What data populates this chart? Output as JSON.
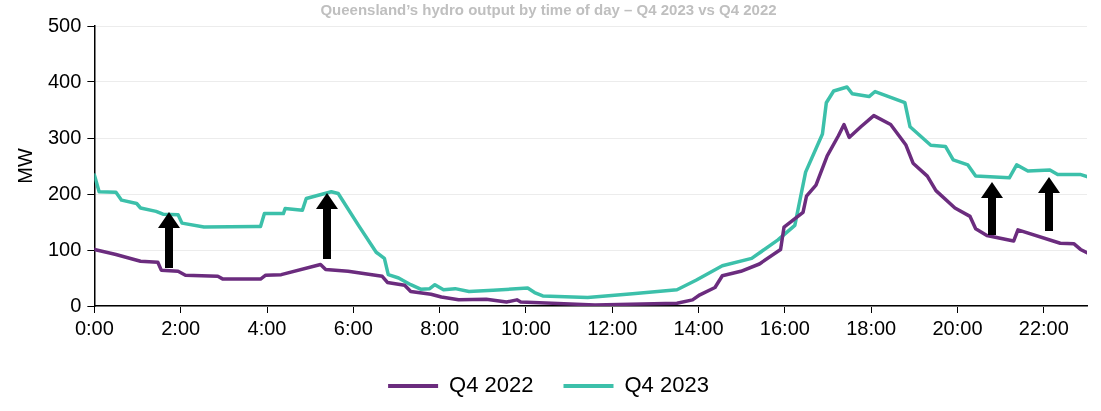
{
  "chart_data": {
    "type": "line",
    "title": "Queensland’s hydro output by time of day – Q4 2023 vs Q4 2022",
    "ylabel": "MW",
    "xlim": [
      0,
      23
    ],
    "ylim": [
      0,
      500
    ],
    "yticks": [
      0,
      100,
      200,
      300,
      400,
      500
    ],
    "xticks": [
      {
        "value": 0,
        "label": "0:00"
      },
      {
        "value": 2,
        "label": "2:00"
      },
      {
        "value": 4,
        "label": "4:00"
      },
      {
        "value": 6,
        "label": "6:00"
      },
      {
        "value": 8,
        "label": "8:00"
      },
      {
        "value": 10,
        "label": "10:00"
      },
      {
        "value": 12,
        "label": "12:00"
      },
      {
        "value": 14,
        "label": "14:00"
      },
      {
        "value": 16,
        "label": "16:00"
      },
      {
        "value": 18,
        "label": "18:00"
      },
      {
        "value": 20,
        "label": "20:00"
      },
      {
        "value": 22,
        "label": "22:00"
      }
    ],
    "grid": "y",
    "legend": "bottom",
    "series": [
      {
        "name": "Q4 2022",
        "color": "#6b2c7e",
        "x": [
          0,
          0.5,
          1.07,
          1.47,
          1.55,
          1.94,
          2.11,
          2.86,
          2.98,
          3.85,
          3.97,
          4.33,
          5.24,
          5.36,
          5.88,
          6.67,
          6.79,
          7.19,
          7.33,
          7.8,
          8.04,
          8.44,
          9.08,
          9.55,
          9.79,
          9.88,
          11.6,
          13.5,
          13.86,
          14.03,
          14.38,
          14.55,
          14.98,
          15.41,
          15.9,
          15.98,
          16.42,
          16.5,
          16.72,
          16.98,
          17.24,
          17.37,
          17.49,
          17.76,
          18.06,
          18.45,
          18.8,
          18.97,
          19.3,
          19.5,
          19.94,
          20.29,
          20.42,
          20.68,
          21.3,
          21.4,
          22.38,
          22.7,
          22.85,
          23
        ],
        "values": [
          101,
          92,
          80,
          78,
          64,
          62,
          55,
          53,
          48,
          48,
          55,
          56,
          74,
          65,
          62,
          53,
          42,
          37,
          26,
          21,
          16,
          11,
          12,
          7,
          11,
          7,
          2,
          5,
          11,
          20,
          33,
          54,
          62,
          75,
          101,
          141,
          167,
          196,
          216,
          268,
          304,
          324,
          301,
          320,
          340,
          324,
          288,
          255,
          232,
          206,
          175,
          160,
          138,
          126,
          116,
          136,
          112,
          111,
          101,
          95
        ]
      },
      {
        "name": "Q4 2023",
        "color": "#3cc0aa",
        "x": [
          0,
          0.11,
          0.5,
          0.63,
          0.98,
          1.07,
          1.43,
          1.59,
          1.94,
          2.03,
          2.54,
          3.85,
          3.94,
          4.38,
          4.42,
          4.82,
          4.91,
          5.49,
          5.65,
          6.12,
          6.53,
          6.72,
          6.81,
          7.05,
          7.33,
          7.56,
          7.77,
          7.89,
          8.09,
          8.36,
          8.68,
          9.24,
          10.04,
          10.2,
          10.39,
          11.43,
          12.47,
          13.5,
          13.94,
          14.55,
          15.23,
          15.84,
          16.23,
          16.48,
          16.87,
          16.96,
          17.13,
          17.44,
          17.56,
          17.95,
          18.09,
          18.78,
          18.9,
          19.38,
          19.72,
          19.9,
          20.24,
          20.42,
          21.2,
          21.37,
          21.63,
          22.14,
          22.32,
          22.84,
          23
        ],
        "values": [
          234,
          204,
          203,
          189,
          183,
          175,
          169,
          164,
          163,
          148,
          141,
          142,
          165,
          165,
          174,
          171,
          192,
          204,
          201,
          144,
          96,
          85,
          56,
          50,
          38,
          30,
          31,
          38,
          29,
          31,
          26,
          28,
          32,
          24,
          18,
          15,
          22,
          29,
          46,
          72,
          85,
          118,
          144,
          239,
          307,
          363,
          384,
          391,
          379,
          374,
          383,
          363,
          320,
          287,
          285,
          261,
          252,
          232,
          229,
          252,
          241,
          243,
          235,
          235,
          231
        ]
      }
    ]
  }
}
